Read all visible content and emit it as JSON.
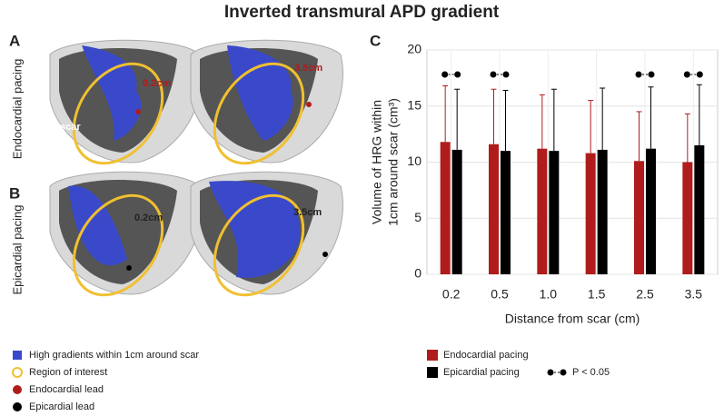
{
  "title": "Inverted transmural APD gradient",
  "panels": {
    "A": {
      "label": "A",
      "row_label": "Endocardial pacing",
      "scar_label": "scar",
      "left_distance": "0.2cm",
      "right_distance": "3.5cm"
    },
    "B": {
      "label": "B",
      "row_label": "Epicardial pacing",
      "left_distance": "0.2cm",
      "right_distance": "3.5cm"
    },
    "C": {
      "label": "C"
    }
  },
  "image_legend": [
    "High gradients within 1cm around scar",
    "Region of interest",
    "Endocardial lead",
    "Epicardial lead"
  ],
  "chart_data": {
    "type": "bar",
    "categories": [
      "0.2",
      "0.5",
      "1.0",
      "1.5",
      "2.5",
      "3.5"
    ],
    "series": [
      {
        "name": "Endocardial pacing",
        "color": "#b01c1c",
        "values": [
          11.8,
          11.6,
          11.2,
          10.8,
          10.1,
          10.0
        ],
        "errors": [
          5.0,
          4.9,
          4.8,
          4.7,
          4.4,
          4.3
        ]
      },
      {
        "name": "Epicardial pacing",
        "color": "#000000",
        "values": [
          11.1,
          11.0,
          11.0,
          11.1,
          11.2,
          11.5
        ],
        "errors": [
          5.4,
          5.4,
          5.5,
          5.5,
          5.5,
          5.4
        ]
      }
    ],
    "significant": [
      true,
      true,
      false,
      false,
      true,
      true
    ],
    "significance_label": "P < 0.05",
    "ylim": [
      0,
      20
    ],
    "yticks": [
      0,
      5,
      10,
      15,
      20
    ],
    "grid": true,
    "ylabel": [
      "Volume of HRG within",
      "1cm around scar (cm³)"
    ],
    "xlabel": "Distance from scar (cm)"
  }
}
